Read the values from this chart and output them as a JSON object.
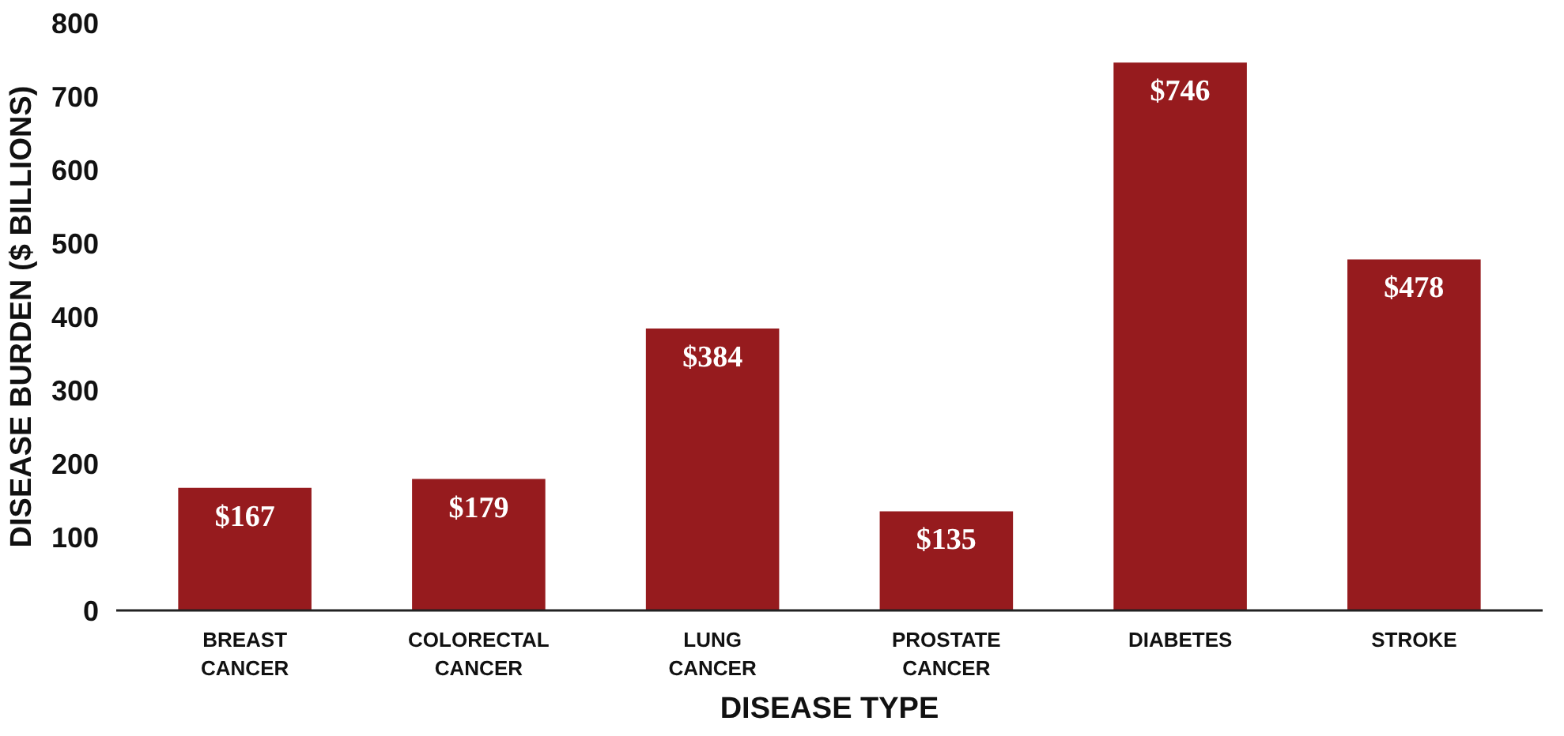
{
  "chart_data": {
    "type": "bar",
    "xlabel": "DISEASE TYPE",
    "ylabel": "DISEASE BURDEN ($ BILLIONS)",
    "categories": [
      "BREAST CANCER",
      "COLORECTAL CANCER",
      "LUNG CANCER",
      "PROSTATE CANCER",
      "DIABETES",
      "STROKE"
    ],
    "values": [
      167,
      179,
      384,
      135,
      746,
      478
    ],
    "value_labels": [
      "$167",
      "$179",
      "$384",
      "$135",
      "$746",
      "$478"
    ],
    "color": "#961b1e",
    "ylim": [
      0,
      800
    ],
    "yticks": [
      0,
      100,
      200,
      300,
      400,
      500,
      600,
      700,
      800
    ],
    "grid": false
  }
}
